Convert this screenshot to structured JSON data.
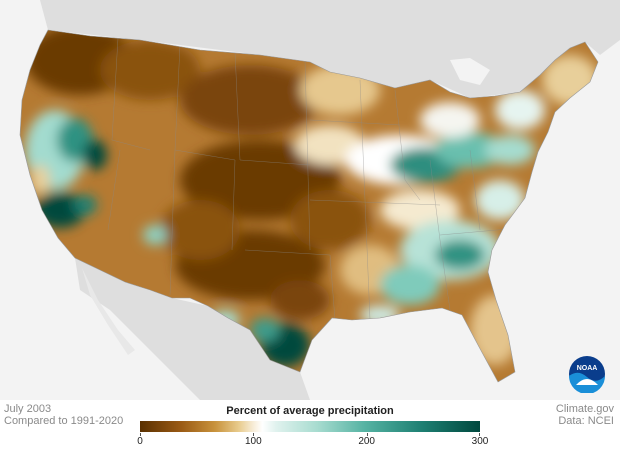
{
  "map": {
    "land_color": "#dedede",
    "ocean_color": "#f3f3f3",
    "dry_color": "#7a4508",
    "wet_color": "#00483e",
    "normal_color": "#ffffff"
  },
  "footer": {
    "date": "July 2003",
    "baseline": "Compared to 1991-2020",
    "source_site": "Climate.gov",
    "source_data": "Data: NCEI"
  },
  "legend": {
    "title": "Percent of average precipitation",
    "ticks": [
      {
        "value": 0,
        "label": "0"
      },
      {
        "value": 100,
        "label": "100"
      },
      {
        "value": 200,
        "label": "200"
      },
      {
        "value": 300,
        "label": "300"
      }
    ],
    "min": 0,
    "max": 300
  },
  "logo": {
    "text": "NOAA",
    "icon": "noaa-logo-icon"
  }
}
